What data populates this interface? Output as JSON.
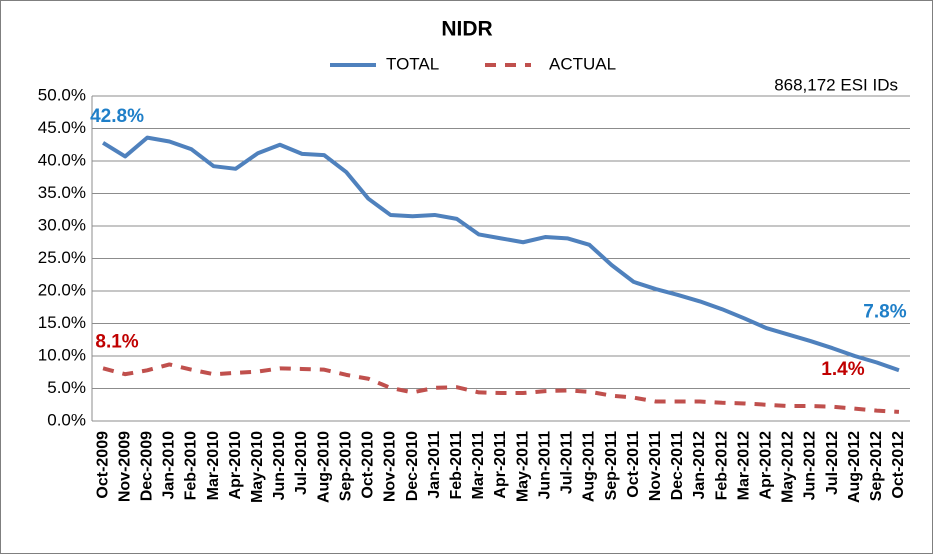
{
  "chart_data": {
    "type": "line",
    "title": "NIDR",
    "annotation": "868,172 ESI IDs",
    "categories": [
      "Oct-2009",
      "Nov-2009",
      "Dec-2009",
      "Jan-2010",
      "Feb-2010",
      "Mar-2010",
      "Apr-2010",
      "May-2010",
      "Jun-2010",
      "Jul-2010",
      "Aug-2010",
      "Sep-2010",
      "Oct-2010",
      "Nov-2010",
      "Dec-2010",
      "Jan-2011",
      "Feb-2011",
      "Mar-2011",
      "Apr-2011",
      "May-2011",
      "Jun-2011",
      "Jul-2011",
      "Aug-2011",
      "Sep-2011",
      "Oct-2011",
      "Nov-2011",
      "Dec-2011",
      "Jan-2012",
      "Feb-2012",
      "Mar-2012",
      "Apr-2012",
      "May-2012",
      "Jun-2012",
      "Jul-2012",
      "Aug-2012",
      "Sep-2012",
      "Oct-2012"
    ],
    "series": [
      {
        "name": "TOTAL",
        "color": "#4f81bd",
        "style": "solid",
        "label_color": "#1f7fc8",
        "values": [
          42.8,
          40.7,
          43.6,
          43.0,
          41.8,
          39.2,
          38.8,
          41.2,
          42.5,
          41.1,
          40.9,
          38.3,
          34.2,
          31.7,
          31.5,
          31.7,
          31.1,
          28.7,
          28.1,
          27.5,
          28.3,
          28.1,
          27.1,
          24.0,
          21.4,
          20.3,
          19.4,
          18.4,
          17.2,
          15.8,
          14.3,
          13.3,
          12.3,
          11.2,
          10.0,
          9.0,
          7.8
        ],
        "value_labels": [
          "42.8%",
          null,
          null,
          null,
          null,
          null,
          null,
          null,
          null,
          null,
          null,
          null,
          null,
          null,
          null,
          null,
          null,
          null,
          null,
          null,
          null,
          null,
          null,
          null,
          null,
          null,
          null,
          null,
          null,
          null,
          null,
          null,
          null,
          null,
          null,
          null,
          "7.8%"
        ]
      },
      {
        "name": "ACTUAL",
        "color": "#c0504d",
        "style": "dashed",
        "label_color": "#c00000",
        "values": [
          8.1,
          7.2,
          7.8,
          8.7,
          7.9,
          7.2,
          7.4,
          7.6,
          8.1,
          8.0,
          7.9,
          7.1,
          6.5,
          5.1,
          4.4,
          5.1,
          5.2,
          4.4,
          4.3,
          4.3,
          4.6,
          4.7,
          4.5,
          3.9,
          3.6,
          3.0,
          3.0,
          3.0,
          2.8,
          2.7,
          2.5,
          2.3,
          2.3,
          2.2,
          1.9,
          1.6,
          1.4
        ],
        "value_labels": [
          "8.1%",
          null,
          null,
          null,
          null,
          null,
          null,
          null,
          null,
          null,
          null,
          null,
          null,
          null,
          null,
          null,
          null,
          null,
          null,
          null,
          null,
          null,
          null,
          null,
          null,
          null,
          null,
          null,
          null,
          null,
          null,
          null,
          null,
          null,
          null,
          null,
          "1.4%"
        ]
      }
    ],
    "ylim": [
      0,
      50
    ],
    "yticks": [
      {
        "value": 0,
        "label": "0.0%"
      },
      {
        "value": 5,
        "label": "5.0%"
      },
      {
        "value": 10,
        "label": "10.0%"
      },
      {
        "value": 15,
        "label": "15.0%"
      },
      {
        "value": 20,
        "label": "20.0%"
      },
      {
        "value": 25,
        "label": "25.0%"
      },
      {
        "value": 30,
        "label": "30.0%"
      },
      {
        "value": 35,
        "label": "35.0%"
      },
      {
        "value": 40,
        "label": "40.0%"
      },
      {
        "value": 45,
        "label": "45.0%"
      },
      {
        "value": 50,
        "label": "50.0%"
      }
    ],
    "grid": true,
    "legend": "top"
  }
}
